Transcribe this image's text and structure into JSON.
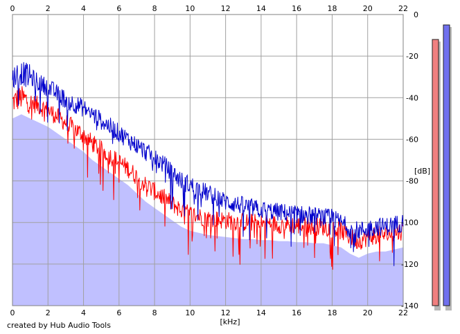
{
  "chart_data": {
    "type": "area",
    "title": "",
    "xlabel": "[kHz]",
    "ylabel": "[dB]",
    "xlim": [
      0,
      22
    ],
    "ylim": [
      -140,
      0
    ],
    "x_ticks": [
      "0",
      "2",
      "4",
      "6",
      "8",
      "10",
      "12",
      "14",
      "16",
      "18",
      "20",
      "22"
    ],
    "y_ticks": [
      "0",
      "-20",
      "-40",
      "-60",
      "-80",
      "-100",
      "-120",
      "-140"
    ],
    "grid": true,
    "series": [
      {
        "color": "#0000cc",
        "x": [
          0,
          0.5,
          1,
          1.5,
          2,
          2.5,
          3,
          3.5,
          4,
          4.5,
          5,
          5.5,
          6,
          6.5,
          7,
          7.5,
          8,
          8.5,
          9,
          9.5,
          10,
          10.5,
          11,
          11.5,
          12,
          12.5,
          13,
          13.5,
          14,
          14.5,
          15,
          15.5,
          16,
          16.5,
          17,
          17.5,
          18,
          18.5,
          19,
          19.5,
          20,
          20.5,
          21,
          21.5,
          22
        ],
        "values": [
          -30,
          -28,
          -30,
          -33,
          -35,
          -38,
          -41,
          -43,
          -45,
          -48,
          -51,
          -54,
          -57,
          -60,
          -63,
          -66,
          -69,
          -72,
          -76,
          -80,
          -82,
          -84,
          -86,
          -88,
          -90,
          -91,
          -92,
          -93,
          -94,
          -94.5,
          -95,
          -95.5,
          -96,
          -96.5,
          -97,
          -97.5,
          -98,
          -100,
          -103,
          -104,
          -103,
          -102,
          -102,
          -101,
          -100
        ]
      },
      {
        "color": "#ff0000",
        "x": [
          0,
          0.5,
          1,
          1.5,
          2,
          2.5,
          3,
          3.5,
          4,
          4.5,
          5,
          5.5,
          6,
          6.5,
          7,
          7.5,
          8,
          8.5,
          9,
          9.5,
          10,
          10.5,
          11,
          11.5,
          12,
          12.5,
          13,
          13.5,
          14,
          14.5,
          15,
          15.5,
          16,
          16.5,
          17,
          17.5,
          18,
          18.5,
          19,
          19.5,
          20,
          20.5,
          21,
          21.5,
          22
        ],
        "values": [
          -42,
          -40,
          -42,
          -44,
          -46,
          -49,
          -52,
          -55,
          -58,
          -62,
          -65,
          -68,
          -71,
          -74,
          -78,
          -82,
          -85,
          -88,
          -91,
          -94,
          -96,
          -97,
          -98,
          -98.5,
          -99,
          -99.5,
          -100,
          -100,
          -100.5,
          -100.5,
          -101,
          -101,
          -101.5,
          -101.5,
          -102,
          -102,
          -103,
          -104,
          -107,
          -109,
          -107,
          -106,
          -106,
          -105,
          -104
        ]
      }
    ],
    "level_meters": [
      {
        "color": "#f08080",
        "level_db": -12
      },
      {
        "color": "#7070ee",
        "level_db": -5
      }
    ]
  },
  "footer": {
    "credit": "created by Hub Audio Tools"
  }
}
